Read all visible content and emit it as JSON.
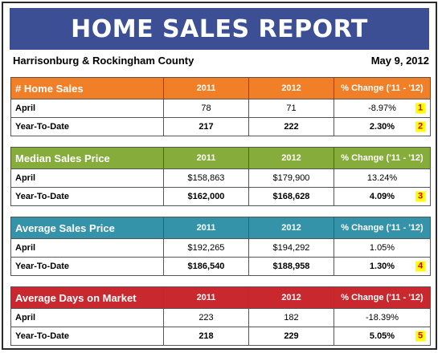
{
  "report": {
    "title": "HOME SALES REPORT",
    "region": "Harrisonburg & Rockingham County",
    "date": "May 9, 2012"
  },
  "tables": [
    {
      "metric": "# Home Sales",
      "color": "#f07f28",
      "col_2011": "2011",
      "col_2012": "2012",
      "col_change": "% Change ('11 - '12)",
      "rows": [
        {
          "label": "April",
          "v2011": "78",
          "v2012": "71",
          "change": "-8.97%",
          "badge": "1"
        },
        {
          "label": "Year-To-Date",
          "v2011": "217",
          "v2012": "222",
          "change": "2.30%",
          "badge": "2"
        }
      ]
    },
    {
      "metric": "Median Sales Price",
      "color": "#86ac3c",
      "col_2011": "2011",
      "col_2012": "2012",
      "col_change": "% Change ('11 - '12)",
      "rows": [
        {
          "label": "April",
          "v2011": "$158,863",
          "v2012": "$179,900",
          "change": "13.24%",
          "badge": ""
        },
        {
          "label": "Year-To-Date",
          "v2011": "$162,000",
          "v2012": "$168,628",
          "change": "4.09%",
          "badge": "3"
        }
      ]
    },
    {
      "metric": "Average Sales Price",
      "color": "#3493a8",
      "col_2011": "2011",
      "col_2012": "2012",
      "col_change": "% Change ('11 - '12)",
      "rows": [
        {
          "label": "April",
          "v2011": "$192,265",
          "v2012": "$194,292",
          "change": "1.05%",
          "badge": ""
        },
        {
          "label": "Year-To-Date",
          "v2011": "$186,540",
          "v2012": "$188,958",
          "change": "1.30%",
          "badge": "4"
        }
      ]
    },
    {
      "metric": "Average Days on Market",
      "color": "#c8282e",
      "col_2011": "2011",
      "col_2012": "2012",
      "col_change": "% Change ('11 - '12)",
      "rows": [
        {
          "label": "April",
          "v2011": "223",
          "v2012": "182",
          "change": "-18.39%",
          "badge": ""
        },
        {
          "label": "Year-To-Date",
          "v2011": "218",
          "v2012": "229",
          "change": "5.05%",
          "badge": "5"
        }
      ]
    }
  ]
}
